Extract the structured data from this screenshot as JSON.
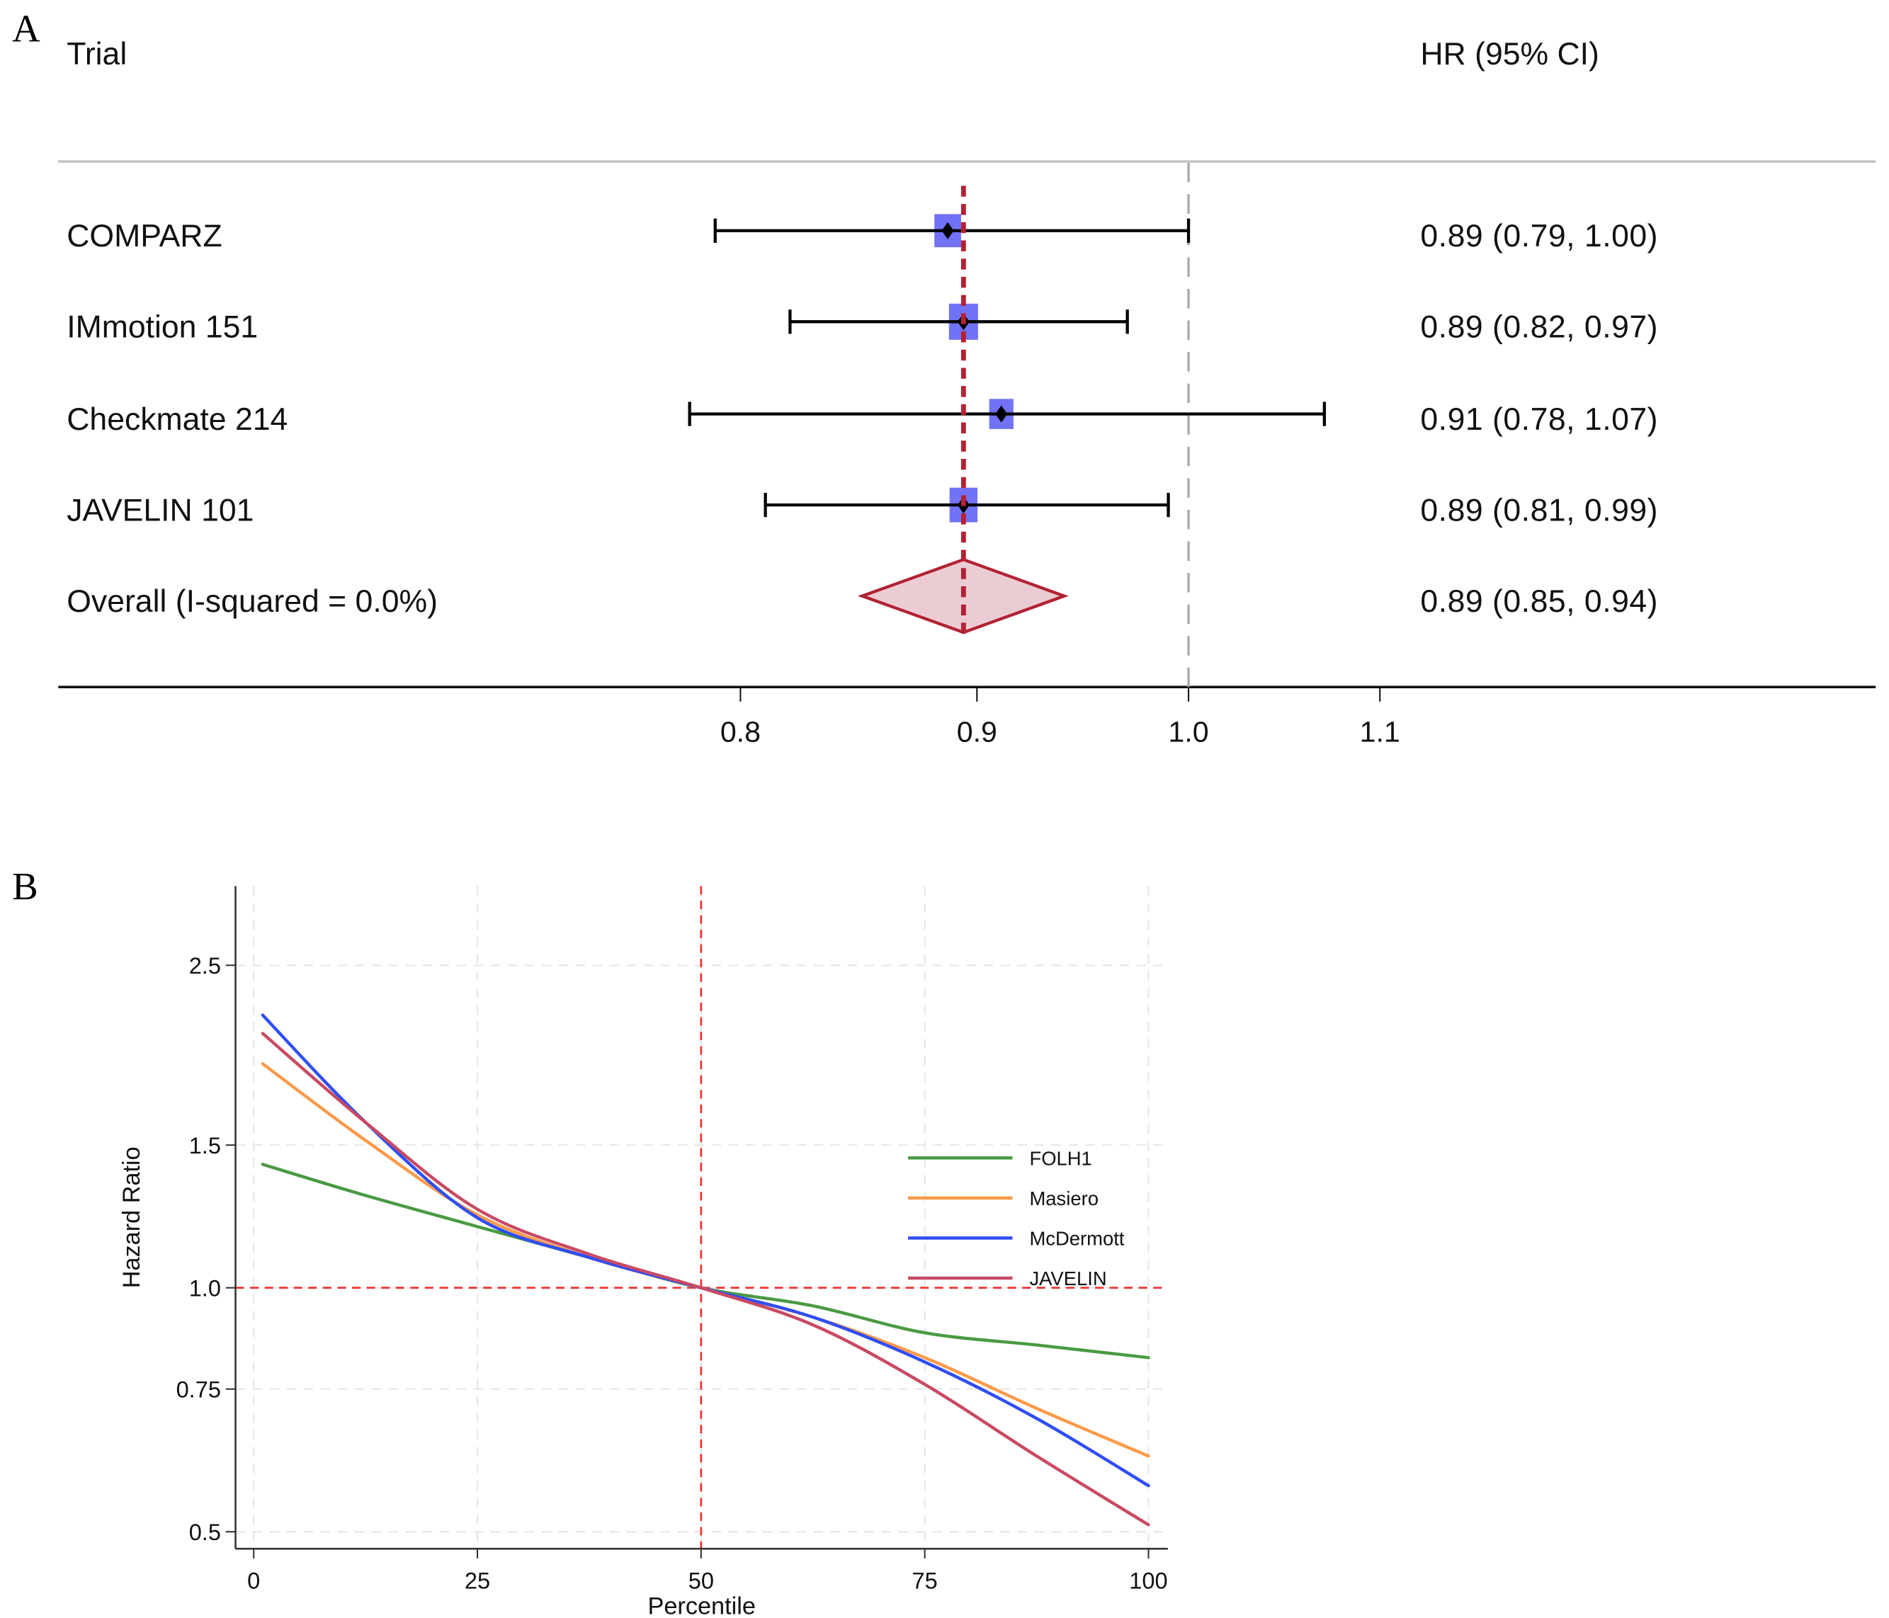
{
  "panel_a_label": "A",
  "panel_b_label": "B",
  "chart_data": [
    {
      "type": "forest",
      "panel": "A",
      "columns": {
        "left_header": "Trial",
        "right_header": "HR (95% CI)"
      },
      "x_scale": "log",
      "xlim": [
        0.6,
        1.4
      ],
      "xticks": [
        0.8,
        0.9,
        1.0,
        1.1
      ],
      "xtick_labels": [
        "0.8",
        "0.9",
        "1.0",
        "1.1"
      ],
      "null_line": 1.0,
      "pooled_line": 0.894,
      "rows": [
        {
          "label": "COMPARZ",
          "hr": 0.887,
          "lo": 0.79,
          "hi": 1.0,
          "weight": 0.8,
          "text": "0.89 (0.79, 1.00)"
        },
        {
          "label": "IMmotion 151",
          "hr": 0.894,
          "lo": 0.82,
          "hi": 0.97,
          "weight": 1.0,
          "text": "0.89 (0.82, 0.97)"
        },
        {
          "label": "Checkmate 214",
          "hr": 0.911,
          "lo": 0.78,
          "hi": 1.07,
          "weight": 0.6,
          "text": "0.91 (0.78, 1.07)"
        },
        {
          "label": "JAVELIN 101",
          "hr": 0.894,
          "lo": 0.81,
          "hi": 0.99,
          "weight": 0.9,
          "text": "0.89 (0.81, 0.99)"
        }
      ],
      "overall": {
        "label": "Overall (I-squared = 0.0%)",
        "hr": 0.894,
        "lo": 0.85,
        "hi": 0.94,
        "text": "0.89 (0.85, 0.94)"
      },
      "colors": {
        "box": "#6a6af5",
        "ci": "#000000",
        "pooled_line": "#b22234",
        "diamond_fill": "#ecccd3",
        "diamond_stroke": "#b22234",
        "null_line": "#aaaaaa"
      }
    },
    {
      "type": "line",
      "panel": "B",
      "xlabel": "Percentile",
      "ylabel": "Hazard Ratio",
      "y_scale": "log",
      "xlim": [
        0,
        100
      ],
      "ylim": [
        0.48,
        2.9
      ],
      "xticks": [
        0,
        25,
        50,
        75,
        100
      ],
      "xtick_labels": [
        "0",
        "25",
        "50",
        "75",
        "100"
      ],
      "yticks": [
        0.5,
        0.75,
        1.0,
        1.5,
        2.5
      ],
      "ytick_labels": [
        "0.5",
        "0.75",
        "1.0",
        "1.5",
        "2.5"
      ],
      "grid": true,
      "reference_lines": {
        "x": 50,
        "y": 1.0,
        "color": "#ee3333"
      },
      "legend_position": "center-right",
      "x": [
        1,
        12.5,
        25,
        37.5,
        50,
        62.5,
        75,
        87.5,
        100
      ],
      "series": [
        {
          "name": "FOLH1",
          "color": "#4a9a42",
          "values": [
            1.42,
            1.3,
            1.19,
            1.09,
            1.0,
            0.95,
            0.88,
            0.85,
            0.82
          ]
        },
        {
          "name": "Masiero",
          "color": "#fb9a4a",
          "values": [
            1.89,
            1.52,
            1.23,
            1.09,
            1.0,
            0.92,
            0.82,
            0.71,
            0.62
          ]
        },
        {
          "name": "McDermott",
          "color": "#2f4ef5",
          "values": [
            2.17,
            1.6,
            1.22,
            1.09,
            1.0,
            0.92,
            0.81,
            0.69,
            0.57
          ]
        },
        {
          "name": "JAVELIN",
          "color": "#c94a63",
          "values": [
            2.06,
            1.6,
            1.25,
            1.1,
            1.0,
            0.9,
            0.76,
            0.62,
            0.51
          ]
        }
      ]
    }
  ]
}
